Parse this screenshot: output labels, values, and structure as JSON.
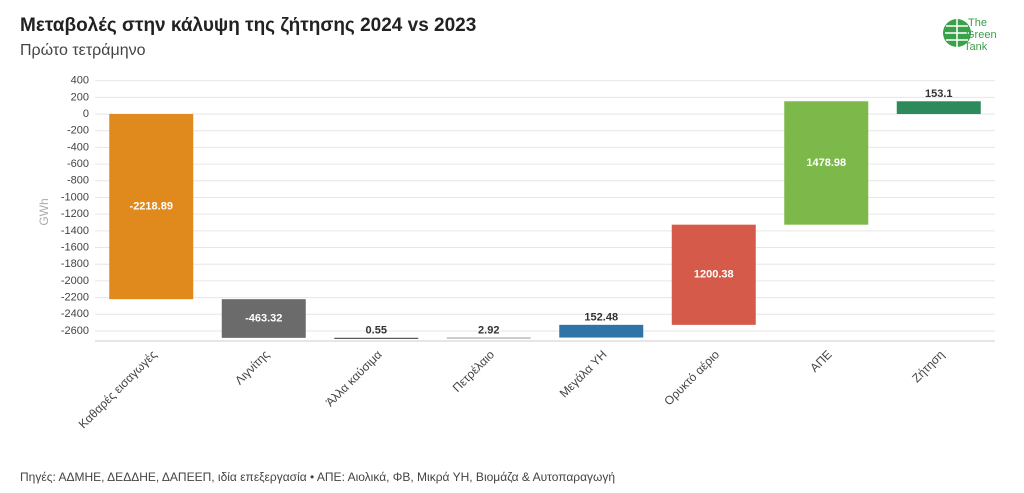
{
  "chart_data": {
    "type": "waterfall",
    "title": "Μεταβολές στην κάλυψη της ζήτησης 2024 vs 2023",
    "subtitle": "Πρώτο τετράμηνο",
    "y_label": "GWh",
    "source": "Πηγές: ΑΔΜΗΕ, ΔΕΔΔΗΕ, ΔΑΠΕΕΠ, ιδία επεξεργασία • ΑΠΕ: Αιολικά, ΦΒ, Μικρά ΥΗ, Βιομάζα & Αυτοπαραγωγή",
    "logo": [
      "The",
      "Green",
      "Tank"
    ],
    "categories": [
      "Καθαρές εισαγωγές",
      "Λιγνίτης",
      "Άλλα καύσιμα",
      "Πετρέλαιο",
      "Μεγάλα ΥΗ",
      "Ορυκτό αέριο",
      "ΑΠΕ",
      "Ζήτηση"
    ],
    "values": [
      -2218.89,
      -463.32,
      0.55,
      2.92,
      152.48,
      1200.38,
      1478.98,
      153.1
    ],
    "colors": [
      "#e0891c",
      "#6b6b6b",
      "#333333",
      "#9a9a9a",
      "#2f74a6",
      "#d65a4a",
      "#7cb84a",
      "#2d8a5a"
    ],
    "ylim": [
      -2720,
      420
    ],
    "yticks": [
      400,
      200,
      0,
      -200,
      -400,
      -600,
      -800,
      -1000,
      -1200,
      -1400,
      -1600,
      -1800,
      -2000,
      -2200,
      -2400,
      -2600
    ],
    "grid": true
  }
}
